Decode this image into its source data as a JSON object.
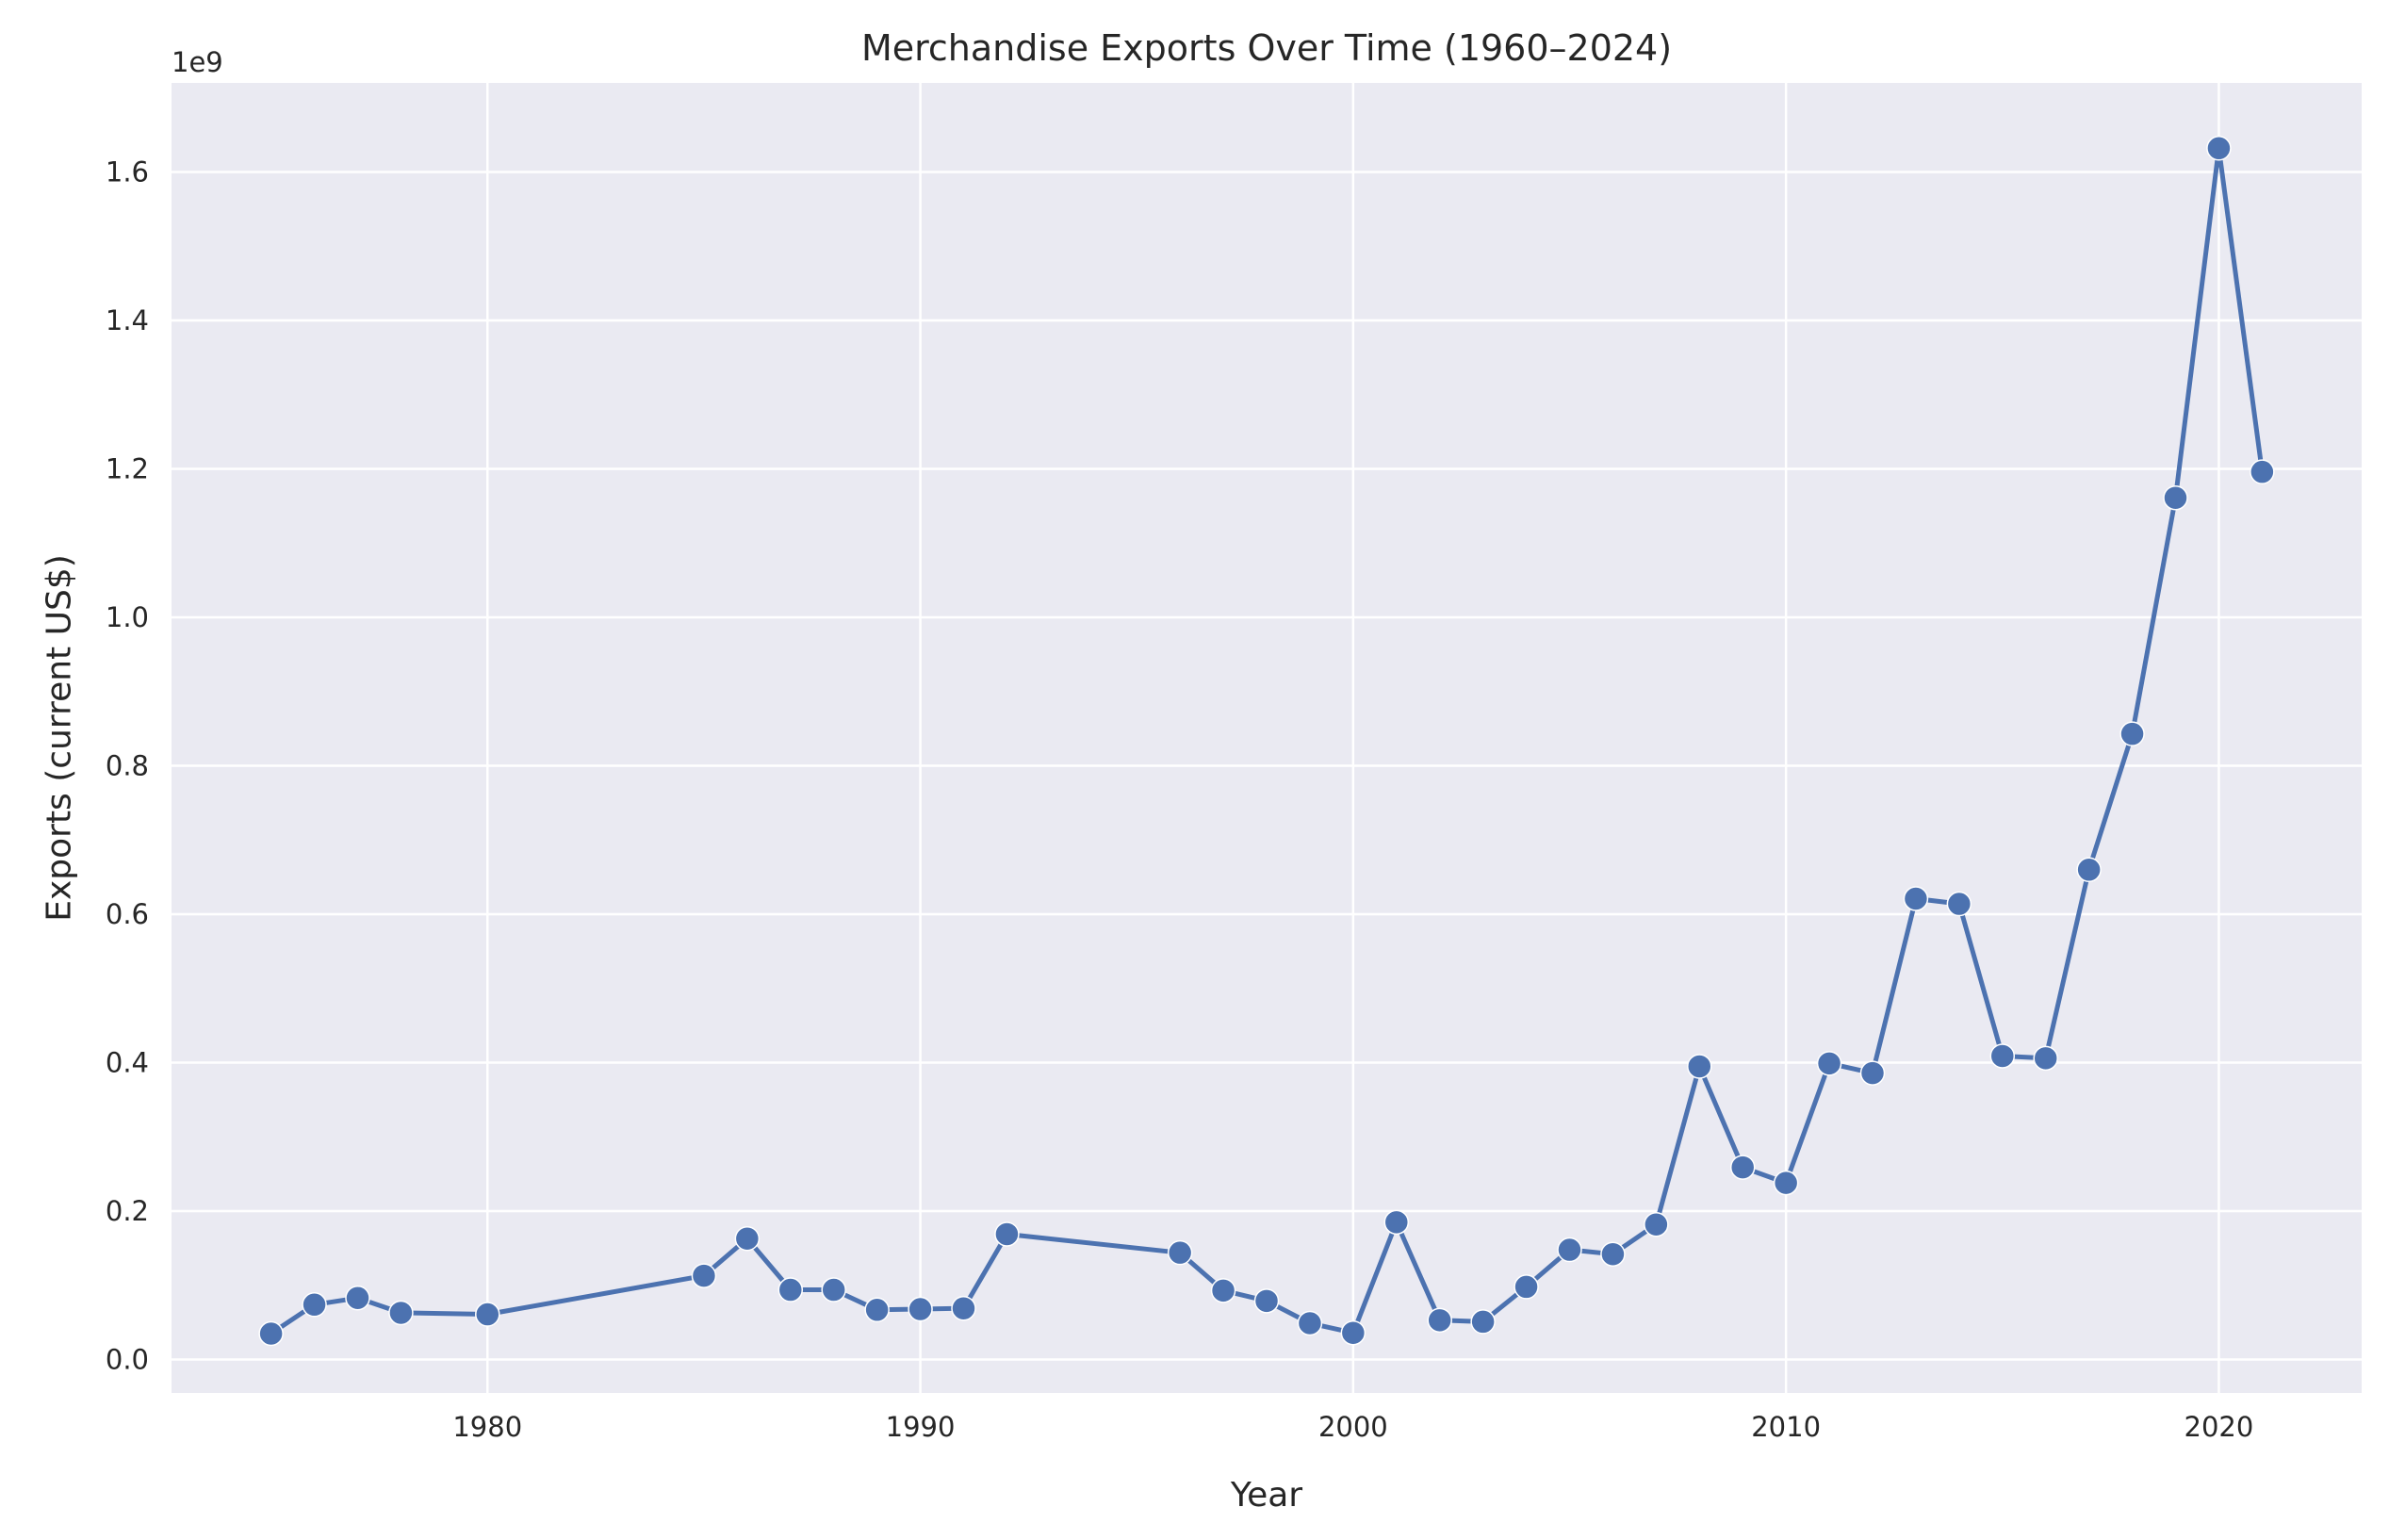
{
  "chart_data": {
    "type": "line",
    "title": "Merchandise Exports Over Time (1960–2024)",
    "xlabel": "Year",
    "ylabel": "Exports (current US$)",
    "y_offset_label": "1e9",
    "xlim": [
      1972.7,
      2023.3
    ],
    "ylim": [
      -0.045,
      1.72
    ],
    "y_scale_note": "values in billions (×1e9)",
    "x_ticks": [
      1980,
      1990,
      2000,
      2010,
      2020
    ],
    "x_tick_labels": [
      "1980",
      "1990",
      "2000",
      "2010",
      "2020"
    ],
    "y_ticks": [
      0.0,
      0.2,
      0.4,
      0.6,
      0.8,
      1.0,
      1.2,
      1.4,
      1.6
    ],
    "y_tick_labels": [
      "0.0",
      "0.2",
      "0.4",
      "0.6",
      "0.8",
      "1.0",
      "1.2",
      "1.4",
      "1.6"
    ],
    "grid": true,
    "color": "#4c72b0",
    "background": "#eaeaf2",
    "series": [
      {
        "x": [
          1975,
          1976,
          1977,
          1978,
          1980,
          1985,
          1986,
          1987,
          1988,
          1989,
          1990,
          1991,
          1992,
          1996,
          1997,
          1998,
          1999,
          2000,
          2001,
          2002,
          2003,
          2004,
          2005,
          2006,
          2007,
          2008,
          2009,
          2010,
          2011,
          2012,
          2013,
          2014,
          2015,
          2016,
          2017,
          2018,
          2019,
          2020,
          2021
        ],
        "y": [
          0.035,
          0.074,
          0.083,
          0.063,
          0.061,
          0.113,
          0.163,
          0.094,
          0.094,
          0.067,
          0.068,
          0.069,
          0.169,
          0.144,
          0.093,
          0.079,
          0.049,
          0.036,
          0.185,
          0.053,
          0.051,
          0.098,
          0.148,
          0.142,
          0.182,
          0.395,
          0.259,
          0.238,
          0.399,
          0.386,
          0.621,
          0.614,
          0.409,
          0.406,
          0.66,
          0.843,
          1.161,
          1.632,
          1.196
        ]
      }
    ]
  }
}
